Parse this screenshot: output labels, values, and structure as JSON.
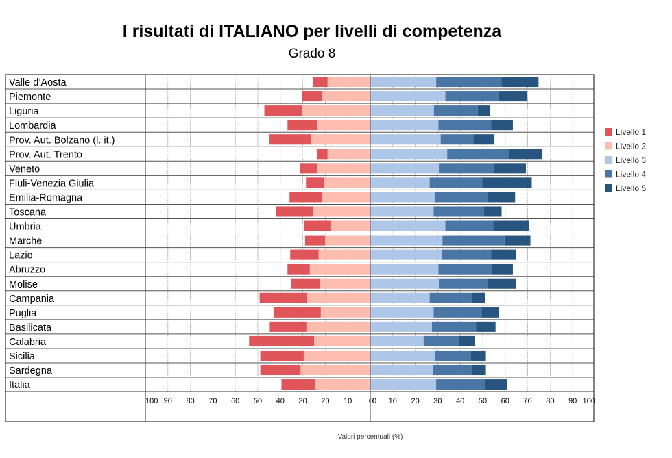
{
  "chart_data": {
    "type": "bar",
    "orientation": "horizontal-diverging",
    "title": "I risultati di ITALIANO per livelli di competenza",
    "subtitle": "Grado 8",
    "xlabel": "Valori percentuali (%)",
    "xlim": [
      -100,
      100
    ],
    "left_ticks": [
      "100",
      "90",
      "80",
      "70",
      "60",
      "50",
      "40",
      "30",
      "20",
      "10",
      "0"
    ],
    "right_ticks": [
      "0",
      "10",
      "20",
      "30",
      "40",
      "50",
      "60",
      "70",
      "80",
      "90",
      "100"
    ],
    "legend_position": "right",
    "categories": [
      "Valle d’Aosta",
      "Piemonte",
      "Liguria",
      "Lombardia",
      "Prov. Aut. Bolzano (l. it.)",
      "Prov. Aut. Trento",
      "Veneto",
      "Fiuli-Venezia Giulia",
      "Emilia-Romagna",
      "Toscana",
      "Umbria",
      "Marche",
      "Lazio",
      "Abruzzo",
      "Molise",
      "Campania",
      "Puglia",
      "Basilicata",
      "Calabria",
      "Sicilia",
      "Sardegna",
      "Italia"
    ],
    "series": [
      {
        "name": "Livello 1",
        "color": "#e0555a",
        "side": "left",
        "values": [
          6.5,
          9.0,
          16.8,
          13.1,
          18.8,
          4.8,
          7.6,
          8.2,
          14.6,
          16.3,
          11.9,
          8.9,
          12.6,
          9.9,
          12.9,
          21.0,
          21.0,
          16.3,
          28.9,
          19.3,
          17.9,
          15.1
        ]
      },
      {
        "name": "Livello 2",
        "color": "#fdbcb0",
        "side": "left",
        "values": [
          19.0,
          21.4,
          30.3,
          23.7,
          26.2,
          19.0,
          23.5,
          20.4,
          21.3,
          25.5,
          17.7,
          20.1,
          23.0,
          26.9,
          22.4,
          28.2,
          22.0,
          28.4,
          25.0,
          29.6,
          31.0,
          24.4
        ]
      },
      {
        "name": "Livello 3",
        "color": "#aec6e8",
        "side": "right",
        "values": [
          29.3,
          33.4,
          28.3,
          30.3,
          31.3,
          34.2,
          30.5,
          26.4,
          28.6,
          28.2,
          33.4,
          32.1,
          31.9,
          30.3,
          30.5,
          26.4,
          28.2,
          27.4,
          23.7,
          28.7,
          27.8,
          29.3
        ]
      },
      {
        "name": "Livello 4",
        "color": "#4a76a6",
        "side": "right",
        "values": [
          29.1,
          23.6,
          19.5,
          23.5,
          14.6,
          27.5,
          24.6,
          23.4,
          23.8,
          22.3,
          21.3,
          27.6,
          21.9,
          23.9,
          21.9,
          18.8,
          21.3,
          19.7,
          15.7,
          16.0,
          17.4,
          21.8
        ]
      },
      {
        "name": "Livello 5",
        "color": "#27557f",
        "side": "right",
        "values": [
          16.4,
          12.8,
          5.3,
          9.6,
          9.3,
          14.8,
          14.1,
          22.0,
          12.0,
          7.9,
          15.9,
          11.5,
          10.9,
          9.2,
          12.5,
          5.9,
          7.8,
          8.6,
          7.0,
          6.7,
          6.2,
          9.8
        ]
      }
    ]
  }
}
